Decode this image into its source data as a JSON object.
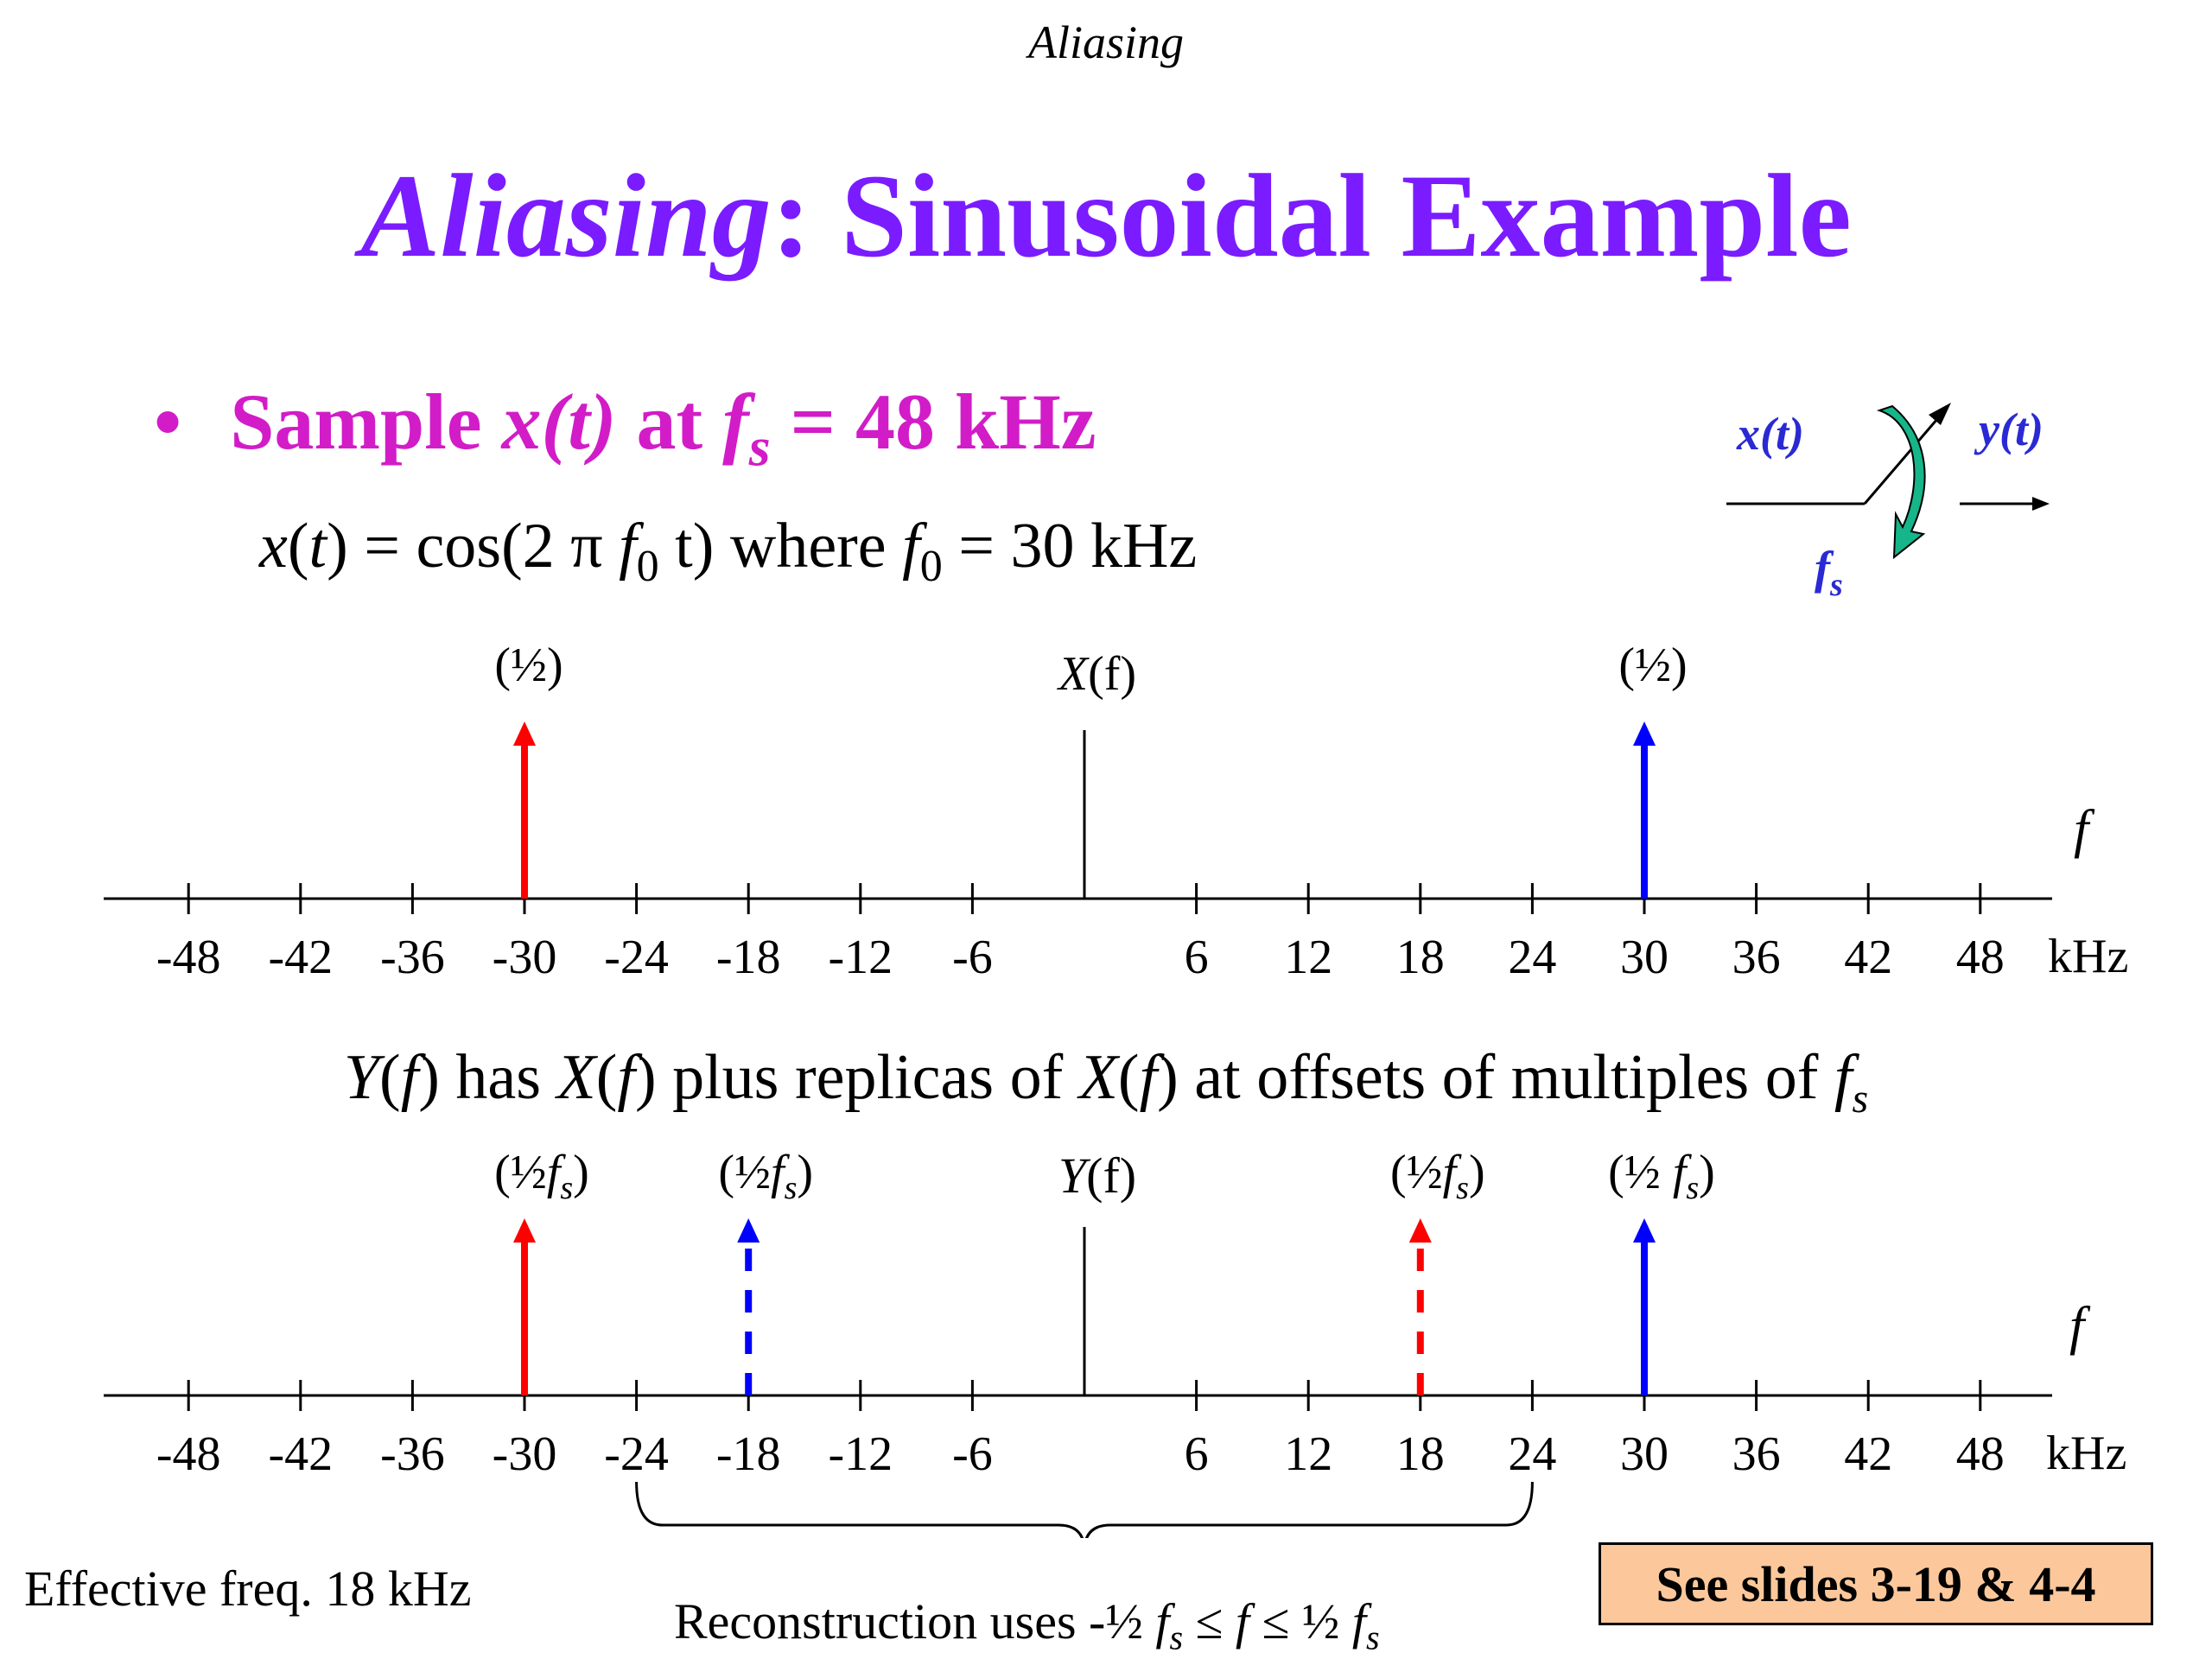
{
  "header": "Aliasing",
  "title": {
    "italic": "Aliasing",
    "rest": ": Sinusoidal Example"
  },
  "bullet": {
    "marker": "•",
    "prefix": "Sample ",
    "x": "x",
    "t": "(t)",
    "at": " at ",
    "f": "f",
    "s": "s",
    "rest": " = 48 kHz"
  },
  "formula": {
    "x": "x",
    "t1": "(",
    "t2": "t",
    "t3": ") = cos(2 π ",
    "f": "f",
    "zero": "0",
    "mid": " t)  where ",
    "f2": "f",
    "zero2": "0",
    "end": " = 30 kHz"
  },
  "system": {
    "input": "x(t)",
    "output": "y(t)",
    "rate": "f",
    "rate_sub": "s"
  },
  "plot1": {
    "label_x": "X",
    "label_paren": "(f)",
    "left_weight": "(½)",
    "right_weight": "(½)",
    "axis_var": "f",
    "unit": "kHz",
    "ticks": [
      "-48",
      "-42",
      "-36",
      "-30",
      "-24",
      "-18",
      "-12",
      "-6",
      "6",
      "12",
      "18",
      "24",
      "30",
      "36",
      "42",
      "48"
    ]
  },
  "statement": {
    "Y": "Y",
    "p1": "(",
    "f1": "f",
    "p2": ") has ",
    "X": "X",
    "p3": "(",
    "f2": "f",
    "p4": ") plus replicas of ",
    "X2": "X",
    "p5": "(",
    "f3": "f",
    "p6": ") at offsets of multiples of ",
    "f4": "f",
    "s": "s"
  },
  "plot2": {
    "label_y": "Y",
    "label_paren": "(f)",
    "impulse_labels": [
      {
        "open": "(½",
        "f": "f",
        "s": "s",
        "close": ")"
      },
      {
        "open": "(½",
        "f": "f",
        "s": "s",
        "close": ")"
      },
      {
        "open": "(½",
        "f": "f",
        "s": "s",
        "close": ")"
      },
      {
        "open": "(½ ",
        "f": "f",
        "s": "s",
        "close": ")"
      }
    ],
    "axis_var": "f",
    "unit": "kHz",
    "ticks": [
      "-48",
      "-42",
      "-36",
      "-30",
      "-24",
      "-18",
      "-12",
      "-6",
      "6",
      "12",
      "18",
      "24",
      "30",
      "36",
      "42",
      "48"
    ]
  },
  "effective": "Effective freq. 18 kHz",
  "reconstruction": {
    "prefix": "Reconstruction uses -½ ",
    "f1": "f",
    "s1": "s",
    "mid": " ≤ ",
    "f2": "f",
    "mid2": " ≤ ½ ",
    "f3": "f",
    "s3": "s"
  },
  "see_slides": "See slides 3-19 & 4-4",
  "chart_data": [
    {
      "type": "impulse-spectrum",
      "title": "X(f)",
      "xlabel": "kHz",
      "xlim": [
        -48,
        48
      ],
      "x_ticks": [
        -48,
        -42,
        -36,
        -30,
        -24,
        -18,
        -12,
        -6,
        6,
        12,
        18,
        24,
        30,
        36,
        42,
        48
      ],
      "impulses": [
        {
          "x": -30,
          "weight": "(½)",
          "color": "#ff0000",
          "style": "solid"
        },
        {
          "x": 30,
          "weight": "(½)",
          "color": "#0000ff",
          "style": "solid"
        }
      ]
    },
    {
      "type": "impulse-spectrum",
      "title": "Y(f)",
      "xlabel": "kHz",
      "xlim": [
        -48,
        48
      ],
      "x_ticks": [
        -48,
        -42,
        -36,
        -30,
        -24,
        -18,
        -12,
        -6,
        6,
        12,
        18,
        24,
        30,
        36,
        42,
        48
      ],
      "impulses": [
        {
          "x": -30,
          "weight": "(½fs)",
          "color": "#ff0000",
          "style": "solid"
        },
        {
          "x": -18,
          "weight": "(½fs)",
          "color": "#0000ff",
          "style": "dashed"
        },
        {
          "x": 18,
          "weight": "(½fs)",
          "color": "#ff0000",
          "style": "dashed"
        },
        {
          "x": 30,
          "weight": "(½ fs)",
          "color": "#0000ff",
          "style": "solid"
        }
      ]
    }
  ]
}
